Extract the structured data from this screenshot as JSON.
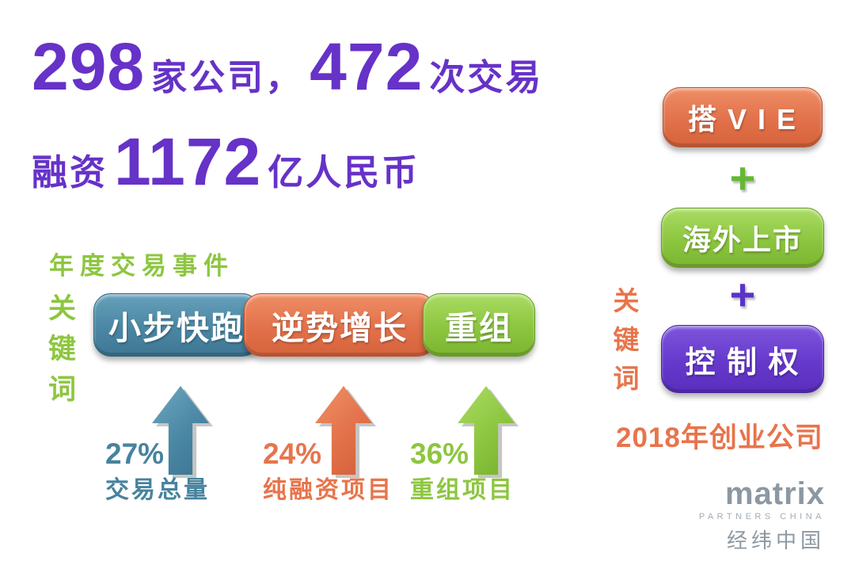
{
  "chart_data": {
    "type": "bar",
    "title": "298 家公司，472 次交易 融资 1172 亿人民币",
    "subtitle": "年度交易事件",
    "categories": [
      "交易总量",
      "纯融资项目",
      "重组项目"
    ],
    "values": [
      27,
      24,
      36
    ],
    "value_unit": "%",
    "keywords_left": [
      "小步快跑",
      "逆势增长",
      "重组"
    ],
    "keywords_right": [
      "搭 V I E",
      "海外上市",
      "控 制 权"
    ],
    "caption": "2018年创业公司"
  },
  "headline": {
    "companies_number": "298",
    "companies_label": "家公司，",
    "deals_number": "472",
    "deals_label": "次交易",
    "funding_prefix": "融资",
    "funding_number": "1172",
    "funding_suffix": "亿人民币"
  },
  "left_section": {
    "subtitle": "年度交易事件",
    "keyword_label": "关键词",
    "pills": [
      {
        "label": "小步快跑",
        "color": "#47839E"
      },
      {
        "label": "逆势增长",
        "color": "#E2714A"
      },
      {
        "label": "重组",
        "color": "#8CC63F"
      }
    ],
    "stats": [
      {
        "percent": "27%",
        "label": "交易总量",
        "color": "#47839E"
      },
      {
        "percent": "24%",
        "label": "纯融资项目",
        "color": "#E8744B"
      },
      {
        "percent": "36%",
        "label": "重组项目",
        "color": "#8DC63F"
      }
    ]
  },
  "right_section": {
    "keyword_label": "关键词",
    "pills": [
      {
        "label": "搭 V I E",
        "color": "#E2714A"
      },
      {
        "label": "海外上市",
        "color": "#8CC63F"
      },
      {
        "label": "控 制 权",
        "color": "#6639CC"
      }
    ],
    "plus_sign": "+",
    "plus_colors": [
      "#64B832",
      "#5A33C8"
    ],
    "caption": "2018年创业公司"
  },
  "logo": {
    "brand": "matrix",
    "subbrand": "PARTNERS CHINA",
    "chinese": "经纬中国"
  },
  "colors": {
    "headline_purple": "#6632C8",
    "green": "#8DC63F",
    "teal": "#47839E",
    "orange": "#E8744B",
    "purple_pill": "#6639CC",
    "logo_gray": "#8C98A2",
    "background": "#FFFFFF"
  }
}
